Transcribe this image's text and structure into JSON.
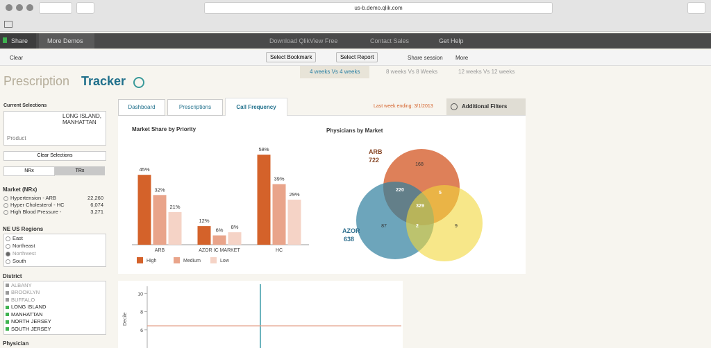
{
  "browser": {
    "url": "us-b.demo.qlik.com"
  },
  "nav": {
    "items": [
      "Share",
      "More Demos",
      "Download QlikView Free",
      "Contact Sales",
      "Get Help"
    ]
  },
  "toolbar": {
    "clear": "Clear",
    "buttons": [
      "Select Bookmark",
      "Select Report",
      "Share session",
      "More"
    ]
  },
  "period_tabs": [
    "4 weeks Vs 4 weeks",
    "8 weeks Vs 8 Weeks",
    "12 weeks Vs 12 weeks"
  ],
  "app_title": {
    "part1": "Prescription",
    "part2": "Tracker"
  },
  "sidebar": {
    "current_selections": {
      "title": "Current Selections",
      "value": "LONG ISLAND, MANHATTAN",
      "field": "Product"
    },
    "clear_button": "Clear Selections",
    "toggle": [
      "NRx",
      "TRx"
    ],
    "market": {
      "title": "Market (NRx)",
      "rows": [
        [
          "Hypertension - ARB",
          "22,260"
        ],
        [
          "Hyper Cholesterol - HC",
          "6,074"
        ],
        [
          "High Blood Pressure -",
          "3,271"
        ]
      ]
    },
    "regions": {
      "title": "NE US Regions",
      "items": [
        "East",
        "Northeast",
        "Northwest",
        "South"
      ]
    },
    "district": {
      "title": "District",
      "items": [
        "ALBANY",
        "BROOKLYN",
        "BUFFALO",
        "LONG ISLAND",
        "MANHATTAN",
        "NORTH JERSEY",
        "SOUTH JERSEY"
      ]
    },
    "physician": {
      "title": "Physician"
    }
  },
  "tabs": [
    "Dashboard",
    "Prescriptions",
    "Call Frequency"
  ],
  "last_week": "Last week ending: 3/1/2013",
  "filters_button": "Additional Filters",
  "chart_data": [
    {
      "type": "bar",
      "title": "Market Share by Priority",
      "categories": [
        "ARB",
        "AZOR IC MARKET",
        "HC"
      ],
      "series": [
        {
          "name": "High",
          "color": "#d4622a",
          "values": [
            45,
            12,
            58
          ],
          "value_labels": [
            "45%",
            "12%",
            "58%"
          ]
        },
        {
          "name": "Medium",
          "color": "#e9a48a",
          "values": [
            32,
            6,
            39
          ],
          "value_labels": [
            "32%",
            "6%",
            "39%"
          ]
        },
        {
          "name": "Low",
          "color": "#f5d3c6",
          "values": [
            21,
            8,
            29
          ],
          "value_labels": [
            "21%",
            "8%",
            "29%"
          ]
        }
      ]
    },
    {
      "type": "scatter",
      "y_label": "Decile",
      "ylim": [
        4,
        11.4
      ],
      "yticks": [
        6,
        8,
        10
      ]
    }
  ],
  "venn": {
    "title": "Physicians by Market",
    "sets": [
      {
        "name": "ARB",
        "total": "722"
      },
      {
        "name": "AZOR",
        "total": "638"
      }
    ],
    "regions": [
      "168",
      "87",
      "9",
      "220",
      "5",
      "2",
      "329"
    ]
  }
}
